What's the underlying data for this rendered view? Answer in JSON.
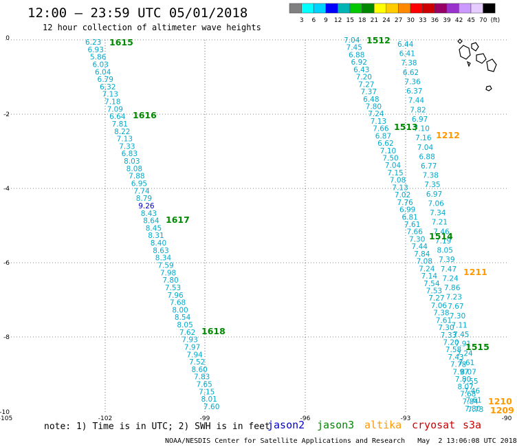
{
  "header": {
    "title": "12:00 – 23:59 UTC 05/01/2018",
    "subtitle": "12 hour collection of altimeter wave heights"
  },
  "legend": {
    "colors": [
      "#808080",
      "#00ffff",
      "#00d2ff",
      "#0000ff",
      "#00b4b4",
      "#00c800",
      "#008800",
      "#ffff00",
      "#ffcc00",
      "#ff8800",
      "#ff0000",
      "#cc0000",
      "#990066",
      "#9933cc",
      "#cc99ff",
      "#e6ccff",
      "#000000"
    ],
    "labels": [
      "3",
      "6",
      "9",
      "12",
      "15",
      "18",
      "21",
      "24",
      "27",
      "30",
      "33",
      "36",
      "39",
      "42",
      "45",
      "70",
      "(ft)"
    ]
  },
  "axes": {
    "y_ticks": [
      "0",
      "-2",
      "-4",
      "-6",
      "-8",
      "-10"
    ],
    "x_ticks": [
      "-105",
      "-102",
      "-99",
      "-96",
      "-93",
      "-90"
    ]
  },
  "note": "note: 1) Time is in UTC; 2) SWH is in feet",
  "satellites": [
    {
      "name": "jason2",
      "color": "#0000cc"
    },
    {
      "name": "jason3",
      "color": "#008800"
    },
    {
      "name": "altika",
      "color": "#ff9900"
    },
    {
      "name": "cryosat",
      "color": "#cc0000"
    },
    {
      "name": "s3a",
      "color": "#cc0000"
    }
  ],
  "footer": "NOAA/NESDIS Center for Satellite Applications and Research   May  2 13:06:08 UTC 2018",
  "tracks": [
    {
      "id": "t1",
      "color": "#00aacc",
      "values": [
        "6.23",
        "6.93",
        "5.86",
        "6.03",
        "6.04",
        "6.79",
        "6.32",
        "7.13",
        "7.18",
        "7.09",
        "6.64",
        "7.81",
        "8.22",
        "7.13",
        "7.33",
        "6.83",
        "8.03",
        "8.08",
        "7.88",
        "6.95",
        "7.74",
        "8.79",
        "9.26",
        "8.43",
        "8.64",
        "8.45",
        "8.31",
        "8.40",
        "8.63",
        "8.34",
        "7.59",
        "7.98",
        "7.80",
        "7.53",
        "7.96",
        "7.68",
        "8.00",
        "8.54",
        "8.05",
        "7.62",
        "7.93",
        "7.97",
        "7.94",
        "7.52",
        "8.60",
        "7.83",
        "7.65",
        "7.15",
        "8.01",
        "7.60"
      ],
      "highlight": "9.26",
      "highlight_color": "#0000cc"
    },
    {
      "id": "t2",
      "color": "#00aacc",
      "values": [
        "7.04",
        "7.45",
        "6.88",
        "6.92",
        "6.43",
        "7.20",
        "7.27",
        "7.37",
        "6.48",
        "7.80",
        "7.24",
        "7.13",
        "7.66",
        "6.87",
        "6.62",
        "7.10",
        "7.50",
        "7.04",
        "7.15",
        "7.08",
        "7.13",
        "7.02",
        "7.76",
        "6.99",
        "6.81",
        "7.61",
        "7.66",
        "7.30",
        "7.44",
        "7.84",
        "7.08",
        "7.24",
        "7.14",
        "7.54",
        "7.53",
        "7.27",
        "7.06",
        "7.38",
        "7.61",
        "7.30",
        "7.33",
        "7.20",
        "7.58",
        "7.43",
        "7.78",
        "7.97",
        "7.80",
        "8.07",
        "7.68",
        "7.84",
        "7.80"
      ]
    },
    {
      "id": "t3",
      "color": "#00aacc",
      "values": [
        "6.44",
        "6.41",
        "7.38",
        "6.62",
        "7.36",
        "6.37",
        "7.44",
        "7.82",
        "6.97",
        "7.10",
        "7.16",
        "7.04",
        "6.88",
        "6.77",
        "7.38",
        "7.35",
        "6.97",
        "7.06",
        "7.34",
        "7.21",
        "7.46",
        "7.19",
        "8.05",
        "7.39",
        "7.47",
        "7.24",
        "7.86",
        "7.23",
        "7.67",
        "7.30",
        "7.11",
        "7.45",
        "7.91",
        "7.24",
        "7.61",
        "8.07",
        "7.55",
        "7.46",
        "7.61",
        "7.73"
      ]
    }
  ],
  "track_labels": [
    {
      "text": "1615",
      "color": "#008800"
    },
    {
      "text": "1616",
      "color": "#008800"
    },
    {
      "text": "1617",
      "color": "#008800"
    },
    {
      "text": "1618",
      "color": "#008800"
    },
    {
      "text": "1512",
      "color": "#008800"
    },
    {
      "text": "1513",
      "color": "#008800"
    },
    {
      "text": "1514",
      "color": "#008800"
    },
    {
      "text": "1515",
      "color": "#008800"
    },
    {
      "text": "1212",
      "color": "#ff9900"
    },
    {
      "text": "1211",
      "color": "#ff9900"
    },
    {
      "text": "1210",
      "color": "#ff9900"
    },
    {
      "text": "1209",
      "color": "#ff9900"
    }
  ]
}
